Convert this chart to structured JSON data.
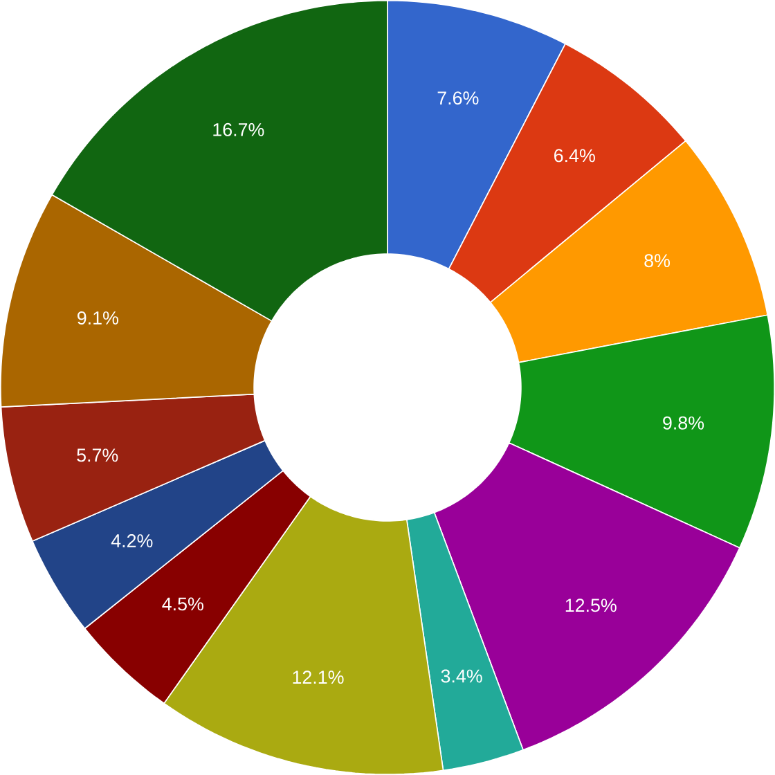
{
  "chart_data": {
    "type": "donut",
    "categories": [
      null,
      null,
      null,
      null,
      null,
      null,
      null,
      null,
      null,
      null,
      null,
      null
    ],
    "values": [
      7.6,
      6.4,
      8,
      9.8,
      12.5,
      3.4,
      12.1,
      4.5,
      4.2,
      5.7,
      9.1,
      16.7
    ],
    "value_labels": [
      "7.6%",
      "6.4%",
      "8%",
      "9.8%",
      "12.5%",
      "3.4%",
      "12.1%",
      "4.5%",
      "4.2%",
      "5.7%",
      "9.1%",
      "16.7%"
    ],
    "colors": [
      "#3366cc",
      "#dc3912",
      "#ff9900",
      "#109618",
      "#990099",
      "#22aa99",
      "#aaaa11",
      "#880000",
      "#224488",
      "#992211",
      "#aa6600",
      "#116611"
    ]
  }
}
